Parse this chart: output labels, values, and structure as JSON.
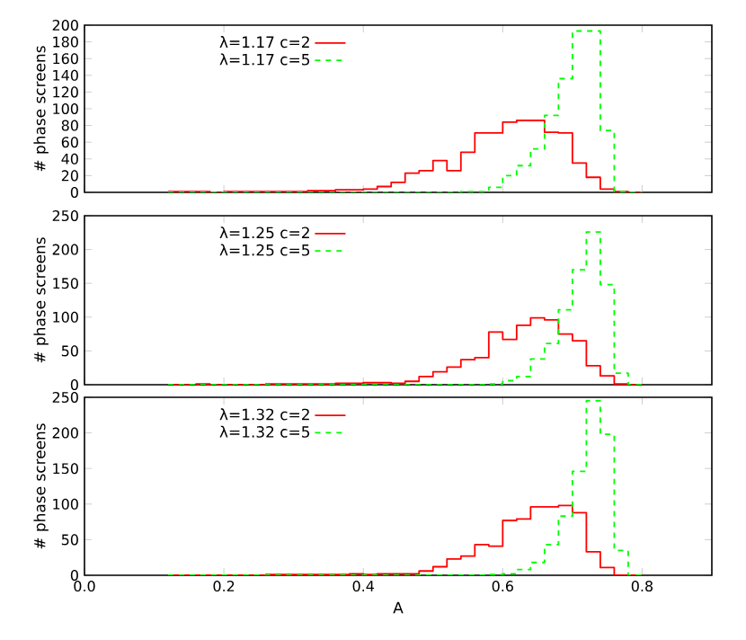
{
  "chart_data": [
    {
      "type": "histogram",
      "ylabel": "# phase screens",
      "bins": [
        0.12,
        0.14,
        0.16,
        0.18,
        0.2,
        0.22,
        0.24,
        0.26,
        0.28,
        0.3,
        0.32,
        0.34,
        0.36,
        0.38,
        0.4,
        0.42,
        0.44,
        0.46,
        0.48,
        0.5,
        0.52,
        0.54,
        0.56,
        0.58,
        0.6,
        0.62,
        0.64,
        0.66,
        0.68,
        0.7,
        0.72,
        0.74,
        0.76,
        0.78,
        0.8
      ],
      "series": [
        {
          "name": "λ=1.17 c=2",
          "color": "#ff0000",
          "line_style": "solid",
          "values": [
            1,
            1,
            1,
            0,
            1,
            1,
            1,
            1,
            1,
            1,
            2,
            2,
            3,
            3,
            4,
            7,
            12,
            23,
            26,
            38,
            26,
            48,
            71,
            71,
            84,
            86,
            86,
            72,
            71,
            35,
            18,
            4,
            1,
            0
          ]
        },
        {
          "name": "λ=1.17 c=5",
          "color": "#00ff00",
          "line_style": "dashed",
          "values": [
            0,
            0,
            0,
            0,
            0,
            0,
            0,
            0,
            0,
            0,
            0,
            0,
            0,
            0,
            0,
            0,
            0,
            0,
            0,
            0,
            0,
            1,
            1,
            6,
            20,
            32,
            52,
            92,
            136,
            193,
            193,
            74,
            1,
            0
          ]
        }
      ],
      "xlim": [
        0,
        0.9
      ],
      "xticks": [
        {
          "value": 0,
          "label": null
        },
        {
          "value": 0.2,
          "label": null
        },
        {
          "value": 0.4,
          "label": null
        },
        {
          "value": 0.6,
          "label": null
        },
        {
          "value": 0.8,
          "label": null
        }
      ],
      "ylim": [
        0,
        200
      ],
      "yticks": [
        0,
        20,
        40,
        60,
        80,
        100,
        120,
        140,
        160,
        180,
        200
      ],
      "tick_labels": "y",
      "legend": "top left"
    },
    {
      "type": "histogram",
      "ylabel": "# phase screens",
      "bins": [
        0.12,
        0.14,
        0.16,
        0.18,
        0.2,
        0.22,
        0.24,
        0.26,
        0.28,
        0.3,
        0.32,
        0.34,
        0.36,
        0.38,
        0.4,
        0.42,
        0.44,
        0.46,
        0.48,
        0.5,
        0.52,
        0.54,
        0.56,
        0.58,
        0.6,
        0.62,
        0.64,
        0.66,
        0.68,
        0.7,
        0.72,
        0.74,
        0.76,
        0.78,
        0.8
      ],
      "series": [
        {
          "name": "λ=1.25 c=2",
          "color": "#ff0000",
          "line_style": "solid",
          "values": [
            0,
            0,
            1,
            0,
            0,
            0,
            0,
            1,
            1,
            1,
            1,
            1,
            2,
            2,
            3,
            3,
            2,
            5,
            12,
            19,
            26,
            37,
            40,
            78,
            67,
            88,
            99,
            96,
            75,
            65,
            28,
            13,
            1,
            0
          ]
        },
        {
          "name": "λ=1.25 c=5",
          "color": "#00ff00",
          "line_style": "dashed",
          "values": [
            0,
            0,
            0,
            0,
            0,
            0,
            0,
            0,
            0,
            0,
            0,
            0,
            0,
            0,
            0,
            0,
            0,
            0,
            0,
            0,
            0,
            0,
            0,
            1,
            6,
            12,
            38,
            61,
            111,
            170,
            226,
            148,
            17,
            0
          ]
        }
      ],
      "xlim": [
        0,
        0.9
      ],
      "xticks": [
        {
          "value": 0,
          "label": null
        },
        {
          "value": 0.2,
          "label": null
        },
        {
          "value": 0.4,
          "label": null
        },
        {
          "value": 0.6,
          "label": null
        },
        {
          "value": 0.8,
          "label": null
        }
      ],
      "ylim": [
        0,
        250
      ],
      "yticks": [
        0,
        50,
        100,
        150,
        200,
        250
      ],
      "tick_labels": "y",
      "legend": "top left"
    },
    {
      "type": "histogram",
      "xlabel": "A",
      "ylabel": "# phase screens",
      "bins": [
        0.12,
        0.14,
        0.16,
        0.18,
        0.2,
        0.22,
        0.24,
        0.26,
        0.28,
        0.3,
        0.32,
        0.34,
        0.36,
        0.38,
        0.4,
        0.42,
        0.44,
        0.46,
        0.48,
        0.5,
        0.52,
        0.54,
        0.56,
        0.58,
        0.6,
        0.62,
        0.64,
        0.66,
        0.68,
        0.7,
        0.72,
        0.74,
        0.76,
        0.78,
        0.8
      ],
      "series": [
        {
          "name": "λ=1.32 c=2",
          "color": "#ff0000",
          "line_style": "solid",
          "values": [
            0,
            0,
            0,
            0,
            0,
            0,
            0,
            1,
            1,
            1,
            1,
            1,
            1,
            2,
            1,
            2,
            2,
            2,
            6,
            12,
            23,
            27,
            43,
            41,
            77,
            79,
            96,
            96,
            98,
            88,
            33,
            11,
            0,
            0
          ]
        },
        {
          "name": "λ=1.32 c=5",
          "color": "#00ff00",
          "line_style": "dashed",
          "values": [
            0,
            0,
            0,
            0,
            0,
            0,
            0,
            0,
            0,
            0,
            0,
            0,
            0,
            0,
            0,
            0,
            0,
            0,
            0,
            0,
            0,
            0,
            0,
            1,
            2,
            8,
            18,
            43,
            83,
            146,
            245,
            198,
            35,
            0
          ]
        }
      ],
      "xlim": [
        0,
        0.9
      ],
      "xticks": [
        {
          "value": 0,
          "label": "0.0"
        },
        0.2,
        0.4,
        0.6,
        0.8
      ],
      "ylim": [
        0,
        250
      ],
      "yticks": [
        0,
        50,
        100,
        150,
        200,
        250
      ],
      "legend": "top left"
    }
  ]
}
